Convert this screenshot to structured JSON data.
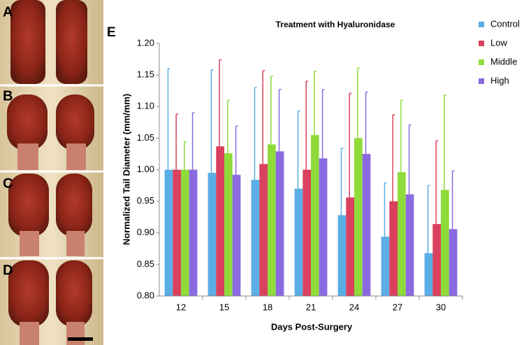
{
  "panels": [
    "A",
    "B",
    "C",
    "D"
  ],
  "chart_data": {
    "type": "bar",
    "panel_label": "E",
    "title": "Treatment with Hyaluronidase",
    "x_label": "Days Post-Surgery",
    "y_label": "Normalized Tail Diameter (mm/mm)",
    "categories": [
      "12",
      "15",
      "18",
      "21",
      "24",
      "27",
      "30"
    ],
    "series": [
      {
        "name": "Control",
        "color": "#5aade5",
        "values": [
          1.0,
          0.995,
          0.984,
          0.97,
          0.928,
          0.894,
          0.868
        ],
        "errors": [
          0.16,
          0.163,
          0.146,
          0.123,
          0.106,
          0.085,
          0.107
        ]
      },
      {
        "name": "Low",
        "color": "#d9415e",
        "values": [
          1.0,
          1.037,
          1.009,
          1.0,
          0.956,
          0.95,
          0.914
        ],
        "errors": [
          0.088,
          0.137,
          0.148,
          0.14,
          0.165,
          0.137,
          0.132
        ]
      },
      {
        "name": "Middle",
        "color": "#8fdb3a",
        "values": [
          1.0,
          1.026,
          1.04,
          1.055,
          1.05,
          0.996,
          0.968
        ],
        "errors": [
          0.044,
          0.084,
          0.108,
          0.101,
          0.111,
          0.114,
          0.15
        ]
      },
      {
        "name": "High",
        "color": "#8a6ae0",
        "values": [
          1.0,
          0.992,
          1.029,
          1.018,
          1.025,
          0.961,
          0.906
        ],
        "errors": [
          0.09,
          0.077,
          0.098,
          0.109,
          0.098,
          0.11,
          0.092
        ]
      }
    ],
    "ylim": [
      0.8,
      1.2
    ],
    "yticks": [
      {
        "value": 0.8,
        "label": "0.80"
      },
      0.85,
      {
        "value": 0.9,
        "label": "0.90"
      },
      0.95,
      {
        "value": 1.0,
        "label": "1.00"
      },
      1.05,
      {
        "value": 1.1,
        "label": "1.10"
      },
      1.15,
      {
        "value": 1.2,
        "label": "1.20"
      }
    ],
    "grid": false,
    "legend": "top-right"
  }
}
